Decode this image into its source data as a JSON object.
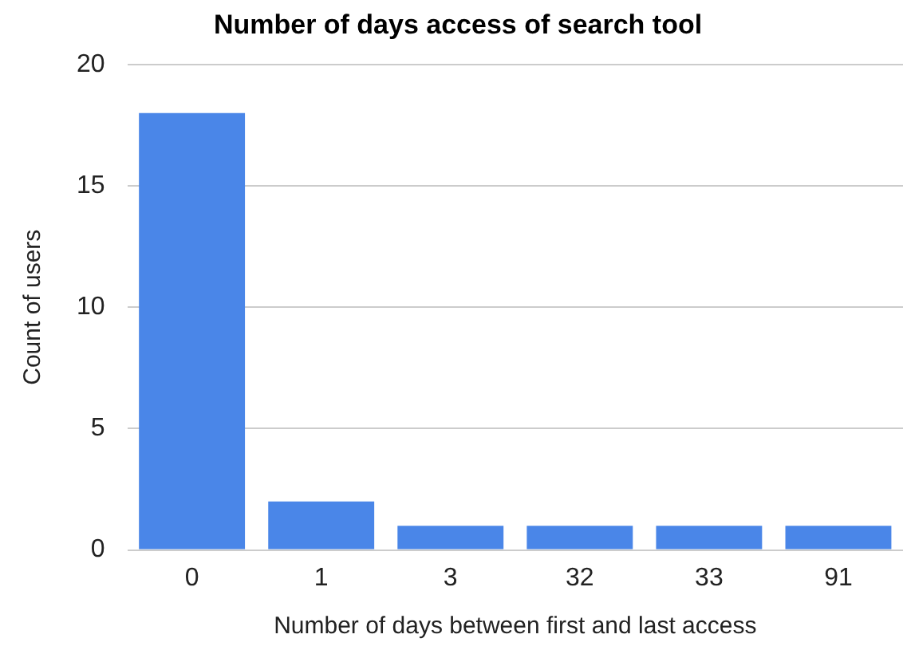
{
  "chart_data": {
    "type": "bar",
    "title": "Number of days access of search tool",
    "xlabel": "Number of days between first and last access",
    "ylabel": "Count of users",
    "categories": [
      "0",
      "1",
      "3",
      "32",
      "33",
      "91"
    ],
    "values": [
      18,
      2,
      1,
      1,
      1,
      1
    ],
    "color": "#4a86e8",
    "ylim": [
      0,
      20
    ],
    "yticks": [
      0,
      5,
      10,
      15,
      20
    ],
    "grid": "y",
    "legend": false
  }
}
